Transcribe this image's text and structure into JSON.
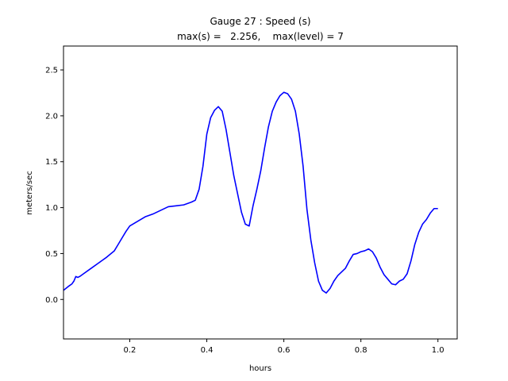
{
  "chart_data": {
    "type": "line",
    "title_line1": "Gauge 27 : Speed (s)",
    "title_line2": "max(s) =   2.256,    max(level) = 7",
    "xlabel": "hours",
    "ylabel": "meters/sec",
    "xlim": [
      0.028,
      1.05
    ],
    "ylim": [
      -0.43,
      2.76
    ],
    "xticks": [
      0.2,
      0.4,
      0.6,
      0.8,
      1.0
    ],
    "xtick_labels": [
      "0.2",
      "0.4",
      "0.6",
      "0.8",
      "1.0"
    ],
    "yticks": [
      0.0,
      0.5,
      1.0,
      1.5,
      2.0,
      2.5
    ],
    "ytick_labels": [
      "0.0",
      "0.5",
      "1.0",
      "1.5",
      "2.0",
      "2.5"
    ],
    "grid": false,
    "series": [
      {
        "color": "#0000ff",
        "x": [
          0.028,
          0.04,
          0.05,
          0.055,
          0.06,
          0.065,
          0.07,
          0.08,
          0.1,
          0.12,
          0.14,
          0.16,
          0.17,
          0.18,
          0.19,
          0.2,
          0.22,
          0.24,
          0.26,
          0.28,
          0.3,
          0.32,
          0.34,
          0.36,
          0.37,
          0.38,
          0.39,
          0.4,
          0.41,
          0.42,
          0.43,
          0.44,
          0.45,
          0.46,
          0.47,
          0.48,
          0.49,
          0.5,
          0.51,
          0.52,
          0.53,
          0.54,
          0.55,
          0.56,
          0.57,
          0.58,
          0.59,
          0.6,
          0.61,
          0.62,
          0.63,
          0.64,
          0.65,
          0.66,
          0.67,
          0.68,
          0.69,
          0.7,
          0.71,
          0.72,
          0.73,
          0.74,
          0.75,
          0.76,
          0.77,
          0.78,
          0.79,
          0.8,
          0.81,
          0.82,
          0.83,
          0.84,
          0.85,
          0.86,
          0.87,
          0.88,
          0.89,
          0.9,
          0.91,
          0.92,
          0.93,
          0.94,
          0.95,
          0.96,
          0.97,
          0.98,
          0.99,
          1.0
        ],
        "y": [
          0.1,
          0.14,
          0.17,
          0.2,
          0.25,
          0.24,
          0.25,
          0.28,
          0.34,
          0.4,
          0.46,
          0.53,
          0.6,
          0.67,
          0.74,
          0.8,
          0.85,
          0.9,
          0.93,
          0.97,
          1.01,
          1.02,
          1.03,
          1.06,
          1.08,
          1.2,
          1.45,
          1.8,
          1.98,
          2.06,
          2.1,
          2.05,
          1.85,
          1.6,
          1.35,
          1.15,
          0.95,
          0.82,
          0.8,
          1.02,
          1.2,
          1.4,
          1.65,
          1.88,
          2.05,
          2.15,
          2.22,
          2.256,
          2.24,
          2.18,
          2.05,
          1.8,
          1.45,
          0.98,
          0.65,
          0.4,
          0.2,
          0.1,
          0.07,
          0.12,
          0.2,
          0.26,
          0.3,
          0.34,
          0.42,
          0.49,
          0.5,
          0.52,
          0.53,
          0.55,
          0.52,
          0.45,
          0.35,
          0.27,
          0.22,
          0.17,
          0.16,
          0.2,
          0.22,
          0.28,
          0.42,
          0.6,
          0.73,
          0.82,
          0.87,
          0.94,
          0.99,
          0.99
        ]
      }
    ]
  }
}
